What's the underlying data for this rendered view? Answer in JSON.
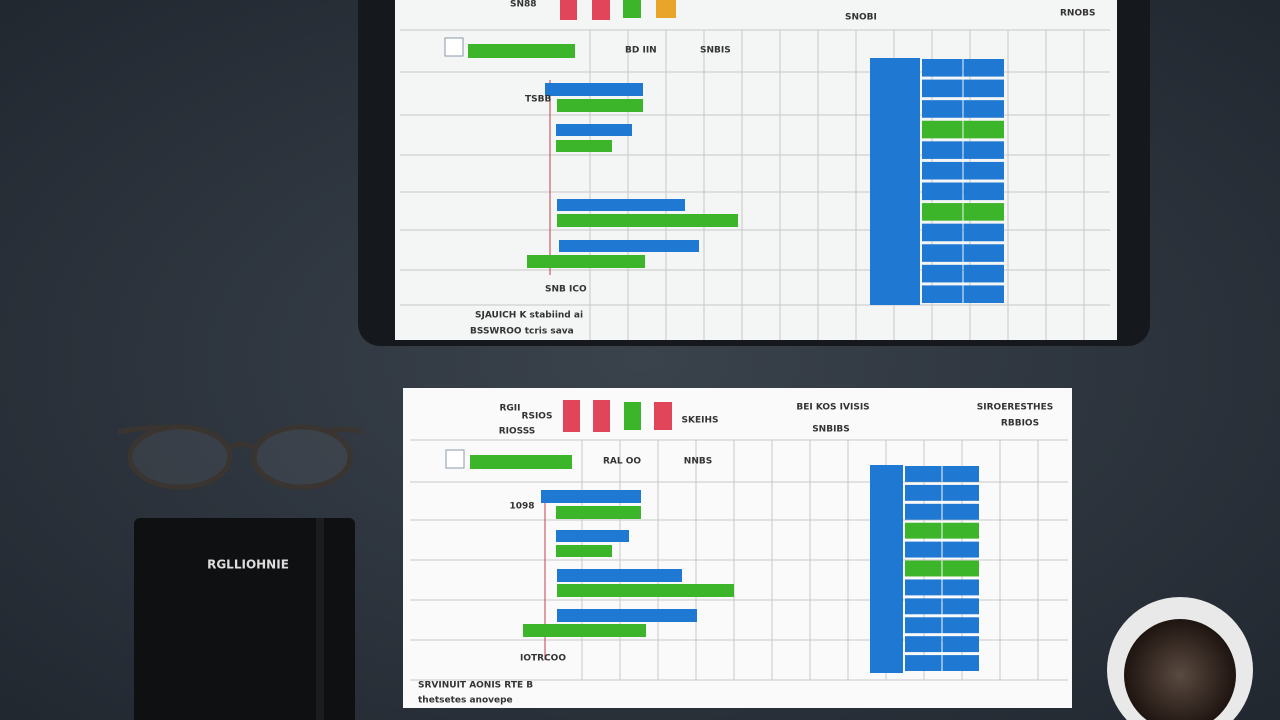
{
  "tablet": {
    "labels": [
      "SN88",
      "SNOBI",
      "RNOBS",
      "BD IIN",
      "SNBIS",
      "TSBB",
      "SNB ICO",
      "SJAUICH K stabiind ai",
      "BSSWROO tcris sava"
    ]
  },
  "paper": {
    "labels": [
      "RGII",
      "RSIOS",
      "RIOSSS",
      "SKEIHS",
      "BEI KOS IVISIS",
      "SNBIBS",
      "SIROERESTHES",
      "RBBIOS",
      "RAL OO",
      "NNBS",
      "1098",
      "IOTRCOO",
      "SRVINUIT AONIS RTE B",
      "thetsetes anovepe"
    ]
  },
  "notebook": {
    "title": "RGLLIOHNIE"
  }
}
